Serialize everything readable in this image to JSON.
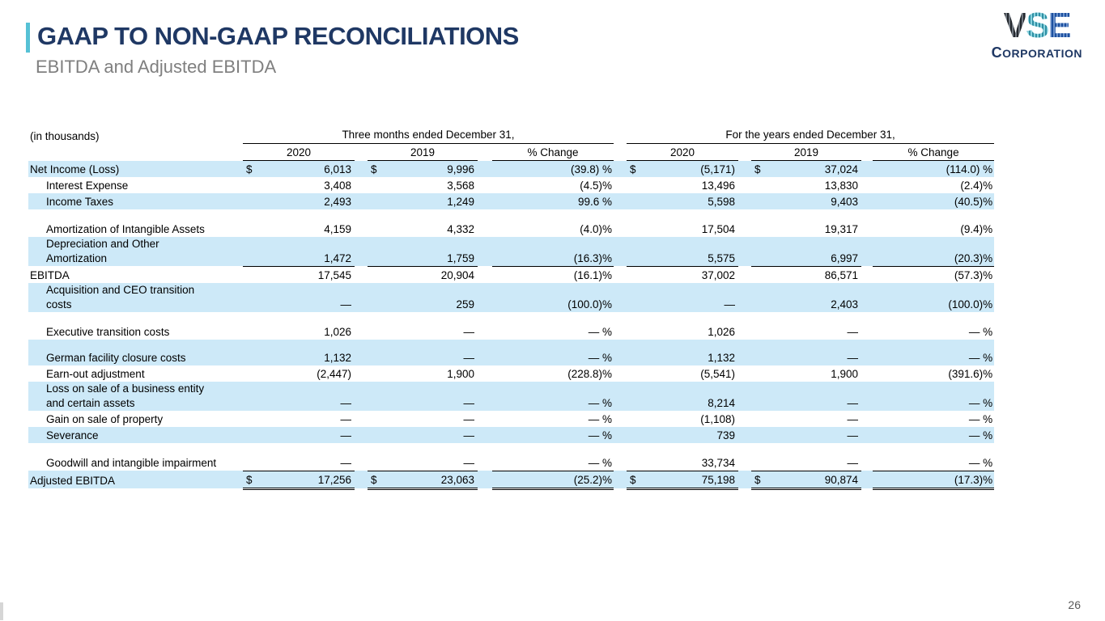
{
  "slide": {
    "title": "GAAP TO NON-GAAP RECONCILIATIONS",
    "subtitle": "EBITDA and Adjusted EBITDA",
    "page_number": "26",
    "colors": {
      "accent_teal": "#56c1d5",
      "title_navy": "#1f3864",
      "row_stripe_blue": "#cde9f8",
      "logo_v_dark": "#3c424a",
      "logo_s_teal": "#4aa7b8",
      "logo_e_blue": "#2a5ca8",
      "footer_gray": "#595959"
    }
  },
  "logo": {
    "letters": [
      "V",
      "S",
      "E"
    ],
    "caption": "CORPORATION"
  },
  "table": {
    "units_label": "(in thousands)",
    "currency_symbol": "$",
    "group_headers": [
      "Three months ended December 31,",
      "For the years ended December 31,"
    ],
    "col_headers": [
      "2020",
      "2019",
      "% Change",
      "2020",
      "2019",
      "% Change"
    ],
    "rows": [
      {
        "label": "Net Income (Loss)",
        "indent": false,
        "stripe": true,
        "dollar": true,
        "values": [
          "6,013",
          "9,996",
          "(39.8) %",
          "(5,171)",
          "37,024",
          "(114.0) %"
        ]
      },
      {
        "label": "Interest Expense",
        "indent": true,
        "stripe": false,
        "values": [
          "3,408",
          "3,568",
          "(4.5)%",
          "13,496",
          "13,830",
          "(2.4)%"
        ]
      },
      {
        "label": "Income Taxes",
        "indent": true,
        "stripe": true,
        "values": [
          "2,493",
          "1,249",
          "99.6 %",
          "5,598",
          "9,403",
          "(40.5)%"
        ]
      },
      {
        "spacer": true,
        "height": 14,
        "stripe": false
      },
      {
        "label": "Amortization of Intangible Assets",
        "indent": true,
        "stripe": false,
        "values": [
          "4,159",
          "4,332",
          "(4.0)%",
          "17,504",
          "19,317",
          "(9.4)%"
        ]
      },
      {
        "label": "Depreciation and Other",
        "label2": "Amortization",
        "indent": true,
        "stripe": true,
        "rule": "single",
        "values": [
          "1,472",
          "1,759",
          "(16.3)%",
          "5,575",
          "6,997",
          "(20.3)%"
        ]
      },
      {
        "label": "EBITDA",
        "indent": false,
        "stripe": false,
        "values": [
          "17,545",
          "20,904",
          "(16.1)%",
          "37,002",
          "86,571",
          "(57.3)%"
        ]
      },
      {
        "label": "Acquisition and CEO transition",
        "label2": "costs",
        "indent": true,
        "stripe": true,
        "values": [
          "—",
          "259",
          "(100.0)%",
          "—",
          "2,403",
          "(100.0)%"
        ]
      },
      {
        "spacer": true,
        "height": 14,
        "stripe": false
      },
      {
        "label": "Executive transition costs",
        "indent": true,
        "stripe": false,
        "values": [
          "1,026",
          "—",
          "— %",
          "1,026",
          "—",
          "— %"
        ]
      },
      {
        "spacer": true,
        "height": 12,
        "stripe": true
      },
      {
        "label": "German facility closure costs",
        "indent": true,
        "stripe": true,
        "values": [
          "1,132",
          "—",
          "— %",
          "1,132",
          "—",
          "— %"
        ]
      },
      {
        "label": "Earn-out adjustment",
        "indent": true,
        "stripe": false,
        "values": [
          "(2,447)",
          "1,900",
          "(228.8)%",
          "(5,541)",
          "1,900",
          "(391.6)%"
        ]
      },
      {
        "label": "Loss on sale of a business entity",
        "label2": "and certain assets",
        "indent": true,
        "stripe": true,
        "values": [
          "—",
          "—",
          "— %",
          "8,214",
          "—",
          "— %"
        ]
      },
      {
        "label": "Gain on sale of property",
        "indent": true,
        "stripe": false,
        "values": [
          "—",
          "—",
          "— %",
          "(1,108)",
          "—",
          "— %"
        ]
      },
      {
        "label": "Severance",
        "indent": true,
        "stripe": true,
        "values": [
          "—",
          "—",
          "— %",
          "739",
          "—",
          "— %"
        ]
      },
      {
        "spacer": true,
        "height": 14,
        "stripe": false
      },
      {
        "label": "Goodwill and intangible impairment",
        "indent": true,
        "stripe": false,
        "rule": "single",
        "values": [
          "—",
          "—",
          "— %",
          "33,734",
          "—",
          "— %"
        ]
      },
      {
        "label": "Adjusted EBITDA",
        "indent": false,
        "stripe": true,
        "dollar": true,
        "rule": "double",
        "values": [
          "17,256",
          "23,063",
          "(25.2)%",
          "75,198",
          "90,874",
          "(17.3)%"
        ]
      }
    ]
  }
}
